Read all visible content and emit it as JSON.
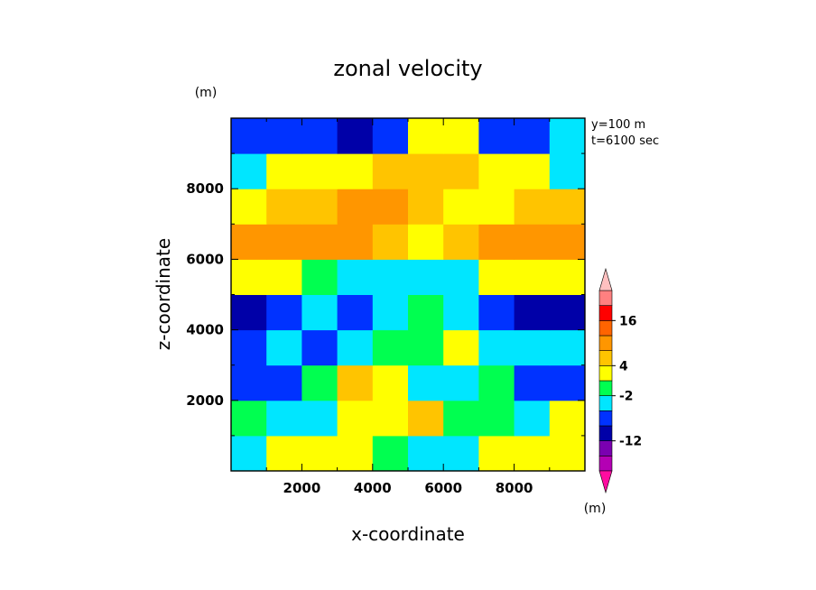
{
  "chart_data": {
    "type": "heatmap",
    "title": "zonal velocity",
    "xlabel": "x-coordinate",
    "ylabel": "z-coordinate",
    "x_unit": "(m)",
    "y_unit": "(m)",
    "colorbar_unit": "(m)",
    "annotations": [
      "y=100 m",
      "t=6100 sec"
    ],
    "xlim": [
      0,
      10000
    ],
    "ylim": [
      0,
      10000
    ],
    "xticks": [
      "2000",
      "4000",
      "6000",
      "8000"
    ],
    "yticks": [
      "2000",
      "4000",
      "6000",
      "8000"
    ],
    "x": [
      500,
      1500,
      2500,
      3500,
      4500,
      5500,
      6500,
      7500,
      8500,
      9500
    ],
    "z": [
      500,
      1500,
      2500,
      3500,
      4500,
      5500,
      6500,
      7500,
      8500,
      9500
    ],
    "values": [
      [
        -2,
        2,
        2,
        2,
        0,
        -2,
        -2,
        2,
        2,
        2
      ],
      [
        0,
        -2,
        -2,
        2,
        2,
        3,
        0,
        0,
        -2,
        2
      ],
      [
        -4,
        -4,
        0,
        3,
        2,
        -2,
        -2,
        0,
        -4,
        -4
      ],
      [
        -4,
        -2,
        -4,
        -2,
        0,
        0,
        2,
        -2,
        -2,
        -2
      ],
      [
        -8,
        -4,
        -2,
        -4,
        -2,
        0,
        -2,
        -4,
        -8,
        -8
      ],
      [
        2,
        2,
        0,
        -2,
        -2,
        -2,
        -2,
        2,
        2,
        2
      ],
      [
        6,
        6,
        6,
        6,
        4,
        2,
        4,
        6,
        6,
        6
      ],
      [
        2,
        3,
        4,
        6,
        6,
        4,
        2,
        2,
        3,
        4
      ],
      [
        -2,
        2,
        2,
        2,
        3,
        3,
        3,
        2,
        2,
        -2
      ],
      [
        -4,
        -4,
        -4,
        -8,
        -4,
        2,
        2,
        -4,
        -4,
        -2
      ]
    ],
    "colorbar": {
      "tick_labels": [
        "16",
        "4",
        "-2",
        "-12"
      ],
      "colors": [
        "#ff0ca0",
        "#b400b4",
        "#7a00b0",
        "#0000a8",
        "#0032ff",
        "#00e6ff",
        "#00ff50",
        "#ffff00",
        "#ffc400",
        "#ff9600",
        "#ff6400",
        "#ff0000",
        "#ff8080",
        "#ffc0c0"
      ]
    }
  }
}
